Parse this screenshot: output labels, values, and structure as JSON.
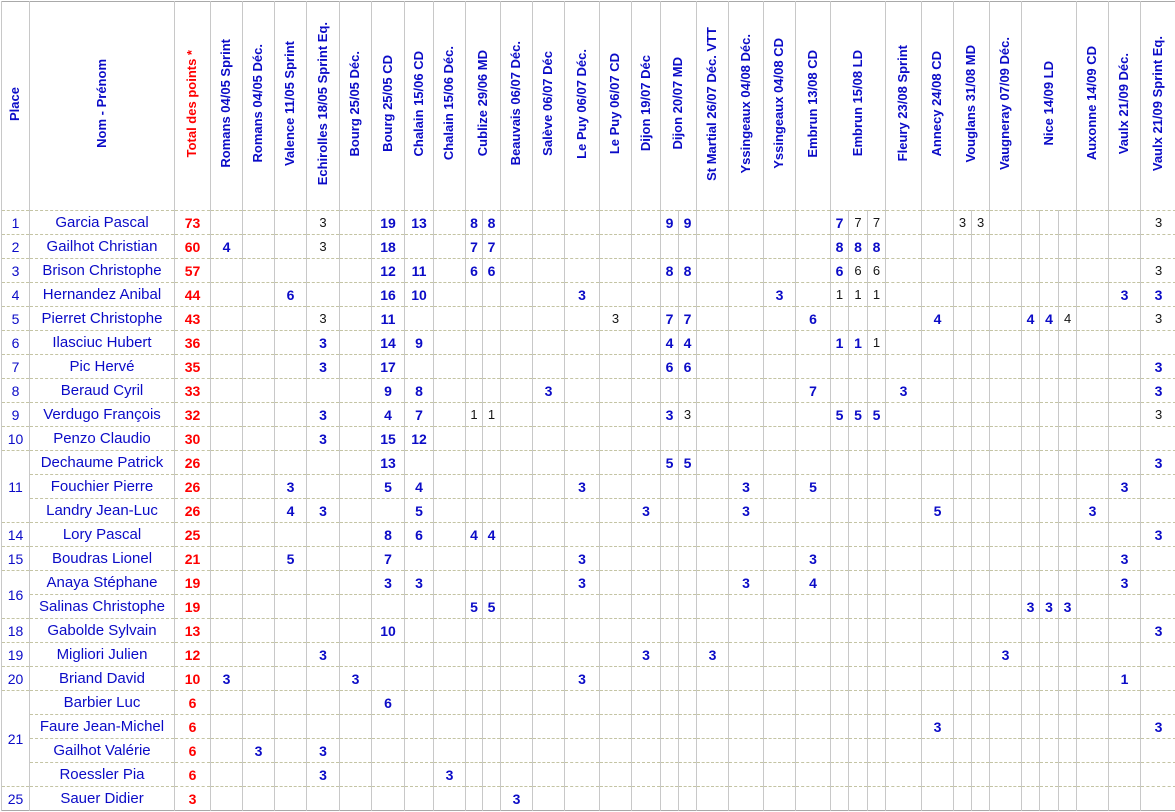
{
  "colors": {
    "header_blue": "#0b0bc7",
    "name_blue": "#0b0bc7",
    "total_red": "#ff0000",
    "score_blue_bold": "#0b0bc7",
    "score_black_not_counted": "#151515",
    "grid_line": "#c8c8c8",
    "grid_dash": "#c4c4a4"
  },
  "table": {
    "corner_headers": [
      {
        "label": "Place",
        "style": "blue"
      },
      {
        "label": "Nom - Prénom",
        "style": "blue"
      },
      {
        "label": "Total des points *",
        "style": "red"
      }
    ],
    "event_columns": [
      {
        "label": "Romans 04/05 Sprint",
        "span": 1
      },
      {
        "label": "Romans 04/05 Déc.",
        "span": 1
      },
      {
        "label": "Valence 11/05 Sprint",
        "span": 1
      },
      {
        "label": "Echirolles 18/05 Sprint Eq.",
        "span": 1
      },
      {
        "label": "Bourg 25/05 Déc.",
        "span": 1
      },
      {
        "label": "Bourg 25/05 CD",
        "span": 1
      },
      {
        "label": "Chalain 15/06 CD",
        "span": 1
      },
      {
        "label": "Chalain 15/06 Déc.",
        "span": 1
      },
      {
        "label": "Cublize 29/06 MD",
        "span": 2
      },
      {
        "label": "Beauvais 06/07 Déc.",
        "span": 1
      },
      {
        "label": "Salève 06/07 Déc",
        "span": 1
      },
      {
        "label": "Le Puy 06/07 Déc.",
        "span": 1
      },
      {
        "label": "Le Puy 06/07 CD",
        "span": 1
      },
      {
        "label": "Dijon 19/07 Déc",
        "span": 1
      },
      {
        "label": "Dijon 20/07 MD",
        "span": 2
      },
      {
        "label": "St Martial 26/07 Déc. VTT",
        "span": 1
      },
      {
        "label": "Yssingeaux 04/08 Déc.",
        "span": 1
      },
      {
        "label": "Yssingeaux 04/08 CD",
        "span": 1
      },
      {
        "label": "Embrun 13/08 CD",
        "span": 1
      },
      {
        "label": "Embrun 15/08 LD",
        "span": 3
      },
      {
        "label": "Fleury 23/08 Sprint",
        "span": 1
      },
      {
        "label": "Annecy 24/08 CD",
        "span": 1
      },
      {
        "label": "Vouglans 31/08 MD",
        "span": 2
      },
      {
        "label": "Vaugneray 07/09 Déc.",
        "span": 1
      },
      {
        "label": "Nice 14/09 LD",
        "span": 3
      },
      {
        "label": "Auxonne 14/09 CD",
        "span": 1
      },
      {
        "label": "Vaulx 21/09 Déc.",
        "span": 1
      },
      {
        "label": "Vaulx 21/09 Sprint Eq.",
        "span": 1
      }
    ],
    "rows": [
      {
        "place": "1",
        "span": 1,
        "name": "Garcia Pascal",
        "total": "73",
        "cells": [
          [
            3,
            3,
            1
          ],
          [
            5,
            19,
            0
          ],
          [
            6,
            13,
            0
          ],
          [
            8,
            8,
            0
          ],
          [
            9,
            8,
            0
          ],
          [
            15,
            9,
            0
          ],
          [
            16,
            9,
            0
          ],
          [
            21,
            7,
            0
          ],
          [
            22,
            7,
            1
          ],
          [
            23,
            7,
            1
          ],
          [
            26,
            3,
            1
          ],
          [
            27,
            3,
            1
          ],
          [
            34,
            3,
            1
          ]
        ]
      },
      {
        "place": "2",
        "span": 1,
        "name": "Gailhot Christian",
        "total": "60",
        "cells": [
          [
            0,
            4,
            0
          ],
          [
            3,
            3,
            1
          ],
          [
            5,
            18,
            0
          ],
          [
            8,
            7,
            0
          ],
          [
            9,
            7,
            0
          ],
          [
            21,
            8,
            0
          ],
          [
            22,
            8,
            0
          ],
          [
            23,
            8,
            0
          ]
        ]
      },
      {
        "place": "3",
        "span": 1,
        "name": "Brison Christophe",
        "total": "57",
        "cells": [
          [
            5,
            12,
            0
          ],
          [
            6,
            11,
            0
          ],
          [
            8,
            6,
            0
          ],
          [
            9,
            6,
            0
          ],
          [
            15,
            8,
            0
          ],
          [
            16,
            8,
            0
          ],
          [
            21,
            6,
            0
          ],
          [
            22,
            6,
            1
          ],
          [
            23,
            6,
            1
          ],
          [
            34,
            3,
            1
          ]
        ]
      },
      {
        "place": "4",
        "span": 1,
        "name": "Hernandez Anibal",
        "total": "44",
        "cells": [
          [
            2,
            6,
            0
          ],
          [
            5,
            16,
            0
          ],
          [
            6,
            10,
            0
          ],
          [
            12,
            3,
            0
          ],
          [
            19,
            3,
            0
          ],
          [
            21,
            1,
            1
          ],
          [
            22,
            1,
            1
          ],
          [
            23,
            1,
            1
          ],
          [
            33,
            3,
            0
          ],
          [
            34,
            3,
            0
          ]
        ]
      },
      {
        "place": "5",
        "span": 1,
        "name": "Pierret Christophe",
        "total": "43",
        "cells": [
          [
            3,
            3,
            1
          ],
          [
            5,
            11,
            0
          ],
          [
            13,
            3,
            1
          ],
          [
            15,
            7,
            0
          ],
          [
            16,
            7,
            0
          ],
          [
            20,
            6,
            0
          ],
          [
            25,
            4,
            0
          ],
          [
            29,
            4,
            0
          ],
          [
            30,
            4,
            0
          ],
          [
            31,
            4,
            1
          ],
          [
            34,
            3,
            1
          ]
        ]
      },
      {
        "place": "6",
        "span": 1,
        "name": "Ilasciuc Hubert",
        "total": "36",
        "cells": [
          [
            3,
            3,
            0
          ],
          [
            5,
            14,
            0
          ],
          [
            6,
            9,
            0
          ],
          [
            15,
            4,
            0
          ],
          [
            16,
            4,
            0
          ],
          [
            21,
            1,
            0
          ],
          [
            22,
            1,
            0
          ],
          [
            23,
            1,
            1
          ]
        ]
      },
      {
        "place": "7",
        "span": 1,
        "name": "Pic Hervé",
        "total": "35",
        "cells": [
          [
            3,
            3,
            0
          ],
          [
            5,
            17,
            0
          ],
          [
            15,
            6,
            0
          ],
          [
            16,
            6,
            0
          ],
          [
            34,
            3,
            0
          ]
        ]
      },
      {
        "place": "8",
        "span": 1,
        "name": "Beraud Cyril",
        "total": "33",
        "cells": [
          [
            5,
            9,
            0
          ],
          [
            6,
            8,
            0
          ],
          [
            11,
            3,
            0
          ],
          [
            20,
            7,
            0
          ],
          [
            24,
            3,
            0
          ],
          [
            34,
            3,
            0
          ]
        ]
      },
      {
        "place": "9",
        "span": 1,
        "name": "Verdugo François",
        "total": "32",
        "cells": [
          [
            3,
            3,
            0
          ],
          [
            5,
            4,
            0
          ],
          [
            6,
            7,
            0
          ],
          [
            8,
            1,
            1
          ],
          [
            9,
            1,
            1
          ],
          [
            15,
            3,
            0
          ],
          [
            16,
            3,
            1
          ],
          [
            21,
            5,
            0
          ],
          [
            22,
            5,
            0
          ],
          [
            23,
            5,
            0
          ],
          [
            34,
            3,
            1
          ]
        ]
      },
      {
        "place": "10",
        "span": 1,
        "name": "Penzo Claudio",
        "total": "30",
        "cells": [
          [
            3,
            3,
            0
          ],
          [
            5,
            15,
            0
          ],
          [
            6,
            12,
            0
          ]
        ]
      },
      {
        "place": "11",
        "span": 3,
        "name": "Dechaume Patrick",
        "total": "26",
        "cells": [
          [
            5,
            13,
            0
          ],
          [
            15,
            5,
            0
          ],
          [
            16,
            5,
            0
          ],
          [
            34,
            3,
            0
          ]
        ]
      },
      {
        "place": null,
        "name": "Fouchier Pierre",
        "total": "26",
        "cells": [
          [
            2,
            3,
            0
          ],
          [
            5,
            5,
            0
          ],
          [
            6,
            4,
            0
          ],
          [
            12,
            3,
            0
          ],
          [
            18,
            3,
            0
          ],
          [
            20,
            5,
            0
          ],
          [
            33,
            3,
            0
          ]
        ]
      },
      {
        "place": null,
        "name": "Landry Jean-Luc",
        "total": "26",
        "cells": [
          [
            2,
            4,
            0
          ],
          [
            3,
            3,
            0
          ],
          [
            6,
            5,
            0
          ],
          [
            14,
            3,
            0
          ],
          [
            18,
            3,
            0
          ],
          [
            25,
            5,
            0
          ],
          [
            32,
            3,
            0
          ]
        ]
      },
      {
        "place": "14",
        "span": 1,
        "name": "Lory Pascal",
        "total": "25",
        "cells": [
          [
            5,
            8,
            0
          ],
          [
            6,
            6,
            0
          ],
          [
            8,
            4,
            0
          ],
          [
            9,
            4,
            0
          ],
          [
            34,
            3,
            0
          ]
        ]
      },
      {
        "place": "15",
        "span": 1,
        "name": "Boudras Lionel",
        "total": "21",
        "cells": [
          [
            2,
            5,
            0
          ],
          [
            5,
            7,
            0
          ],
          [
            12,
            3,
            0
          ],
          [
            20,
            3,
            0
          ],
          [
            33,
            3,
            0
          ]
        ]
      },
      {
        "place": "16",
        "span": 2,
        "name": "Anaya Stéphane",
        "total": "19",
        "cells": [
          [
            5,
            3,
            0
          ],
          [
            6,
            3,
            0
          ],
          [
            12,
            3,
            0
          ],
          [
            18,
            3,
            0
          ],
          [
            20,
            4,
            0
          ],
          [
            33,
            3,
            0
          ]
        ]
      },
      {
        "place": null,
        "name": "Salinas Christophe",
        "total": "19",
        "cells": [
          [
            8,
            5,
            0
          ],
          [
            9,
            5,
            0
          ],
          [
            29,
            3,
            0
          ],
          [
            30,
            3,
            0
          ],
          [
            31,
            3,
            0
          ]
        ]
      },
      {
        "place": "18",
        "span": 1,
        "name": "Gabolde Sylvain",
        "total": "13",
        "cells": [
          [
            5,
            10,
            0
          ],
          [
            34,
            3,
            0
          ]
        ]
      },
      {
        "place": "19",
        "span": 1,
        "name": "Migliori Julien",
        "total": "12",
        "cells": [
          [
            3,
            3,
            0
          ],
          [
            14,
            3,
            0
          ],
          [
            17,
            3,
            0
          ],
          [
            28,
            3,
            0
          ]
        ]
      },
      {
        "place": "20",
        "span": 1,
        "name": "Briand David",
        "total": "10",
        "cells": [
          [
            0,
            3,
            0
          ],
          [
            4,
            3,
            0
          ],
          [
            12,
            3,
            0
          ],
          [
            33,
            1,
            0
          ]
        ]
      },
      {
        "place": "21",
        "span": 4,
        "name": "Barbier Luc",
        "total": "6",
        "cells": [
          [
            5,
            6,
            0
          ]
        ]
      },
      {
        "place": null,
        "name": "Faure Jean-Michel",
        "total": "6",
        "cells": [
          [
            25,
            3,
            0
          ],
          [
            34,
            3,
            0
          ]
        ]
      },
      {
        "place": null,
        "name": "Gailhot Valérie",
        "total": "6",
        "cells": [
          [
            1,
            3,
            0
          ],
          [
            3,
            3,
            0
          ]
        ]
      },
      {
        "place": null,
        "name": "Roessler Pia",
        "total": "6",
        "cells": [
          [
            3,
            3,
            0
          ],
          [
            7,
            3,
            0
          ]
        ]
      },
      {
        "place": "25",
        "span": 1,
        "name": "Sauer Didier",
        "total": "3",
        "cells": [
          [
            10,
            3,
            0
          ]
        ]
      }
    ]
  }
}
